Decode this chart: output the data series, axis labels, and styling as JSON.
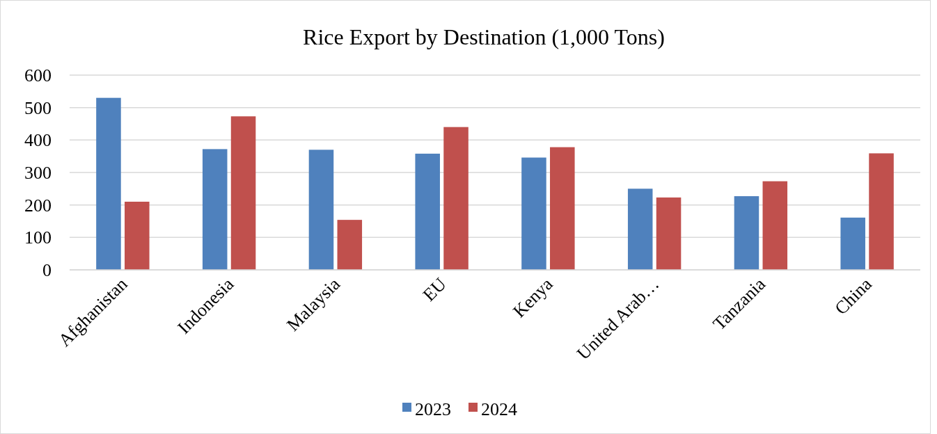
{
  "chart_data": {
    "type": "bar",
    "title": "Rice Export by Destination (1,000 Tons)",
    "categories": [
      "Afghanistan",
      "Indonesia",
      "Malaysia",
      "EU",
      "Kenya",
      "United Arab…",
      "Tanzania",
      "China"
    ],
    "series": [
      {
        "name": "2023",
        "color": "#4f81bd",
        "values": [
          530,
          372,
          370,
          358,
          346,
          250,
          227,
          161
        ]
      },
      {
        "name": "2024",
        "color": "#c0504d",
        "values": [
          210,
          473,
          154,
          440,
          378,
          223,
          273,
          359
        ]
      }
    ],
    "ylim": [
      0,
      600
    ],
    "yticks": [
      0,
      100,
      200,
      300,
      400,
      500,
      600
    ],
    "grid": "y",
    "legend": "bottom"
  }
}
